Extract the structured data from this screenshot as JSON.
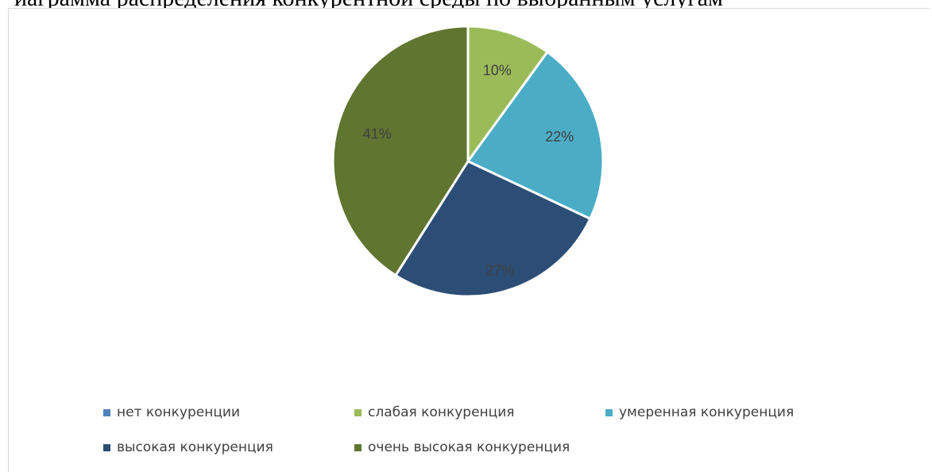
{
  "document": {
    "cut_heading": "иаграмма распределения конкурентной среды по выбранным услугам"
  },
  "chart_data": {
    "type": "pie",
    "title": "",
    "legend_placement": "bottom",
    "slices": [
      {
        "label": "нет конкуренции",
        "value": 0,
        "display": "",
        "color": "#4F81BD"
      },
      {
        "label": "слабая конкуренция",
        "value": 10,
        "display": "10%",
        "color": "#9BBB59"
      },
      {
        "label": "умеренная конкуренция",
        "value": 22,
        "display": "22%",
        "color": "#4BACC6"
      },
      {
        "label": "высокая конкуренция",
        "value": 27,
        "display": "27%",
        "color": "#2C4D75"
      },
      {
        "label": "очень высокая конкуренция",
        "value": 41,
        "display": "41%",
        "color": "#5F7530"
      }
    ]
  }
}
